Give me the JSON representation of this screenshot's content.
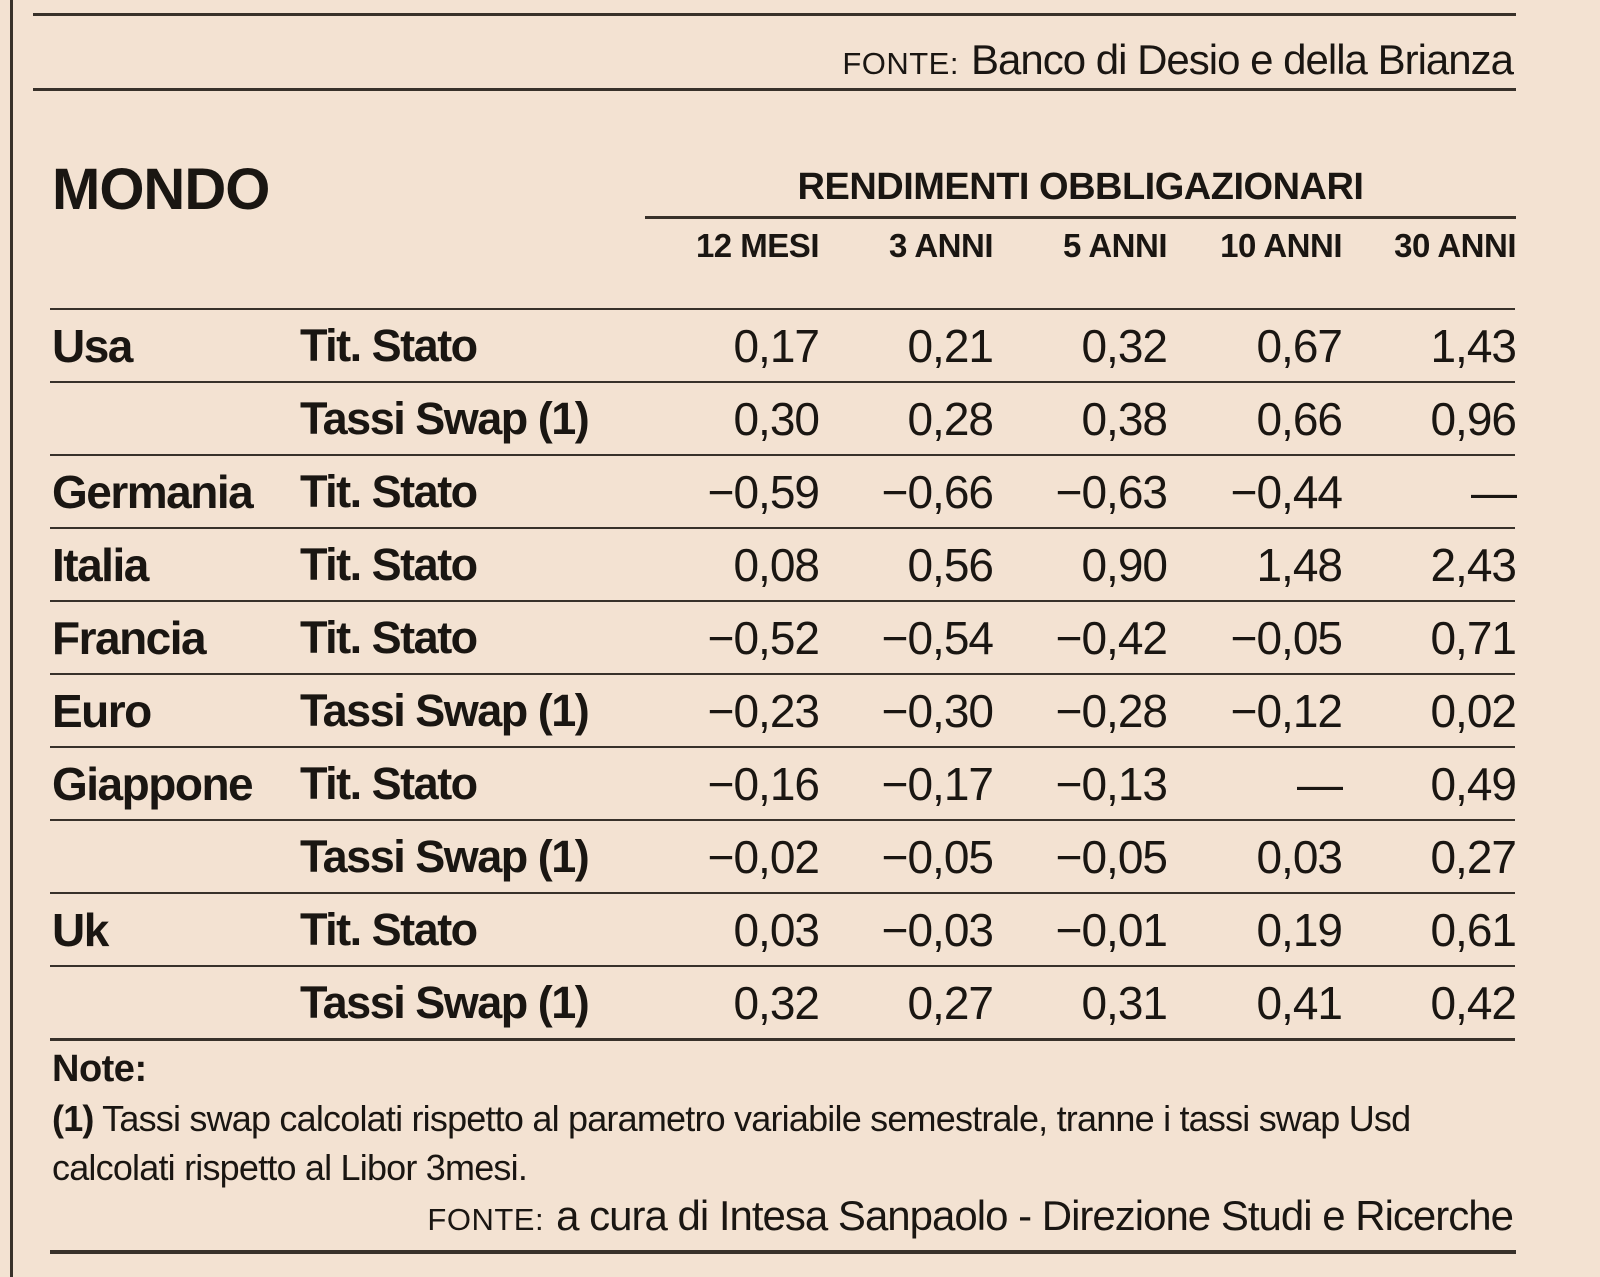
{
  "colors": {
    "background": "#f3e2d2",
    "ink": "#1a1612",
    "rule": "#38312a"
  },
  "top_source": {
    "label": "FONTE:",
    "text": "Banco di Desio e della Brianza"
  },
  "section": {
    "title": "MONDO",
    "table_title": "RENDIMENTI OBBLIGAZIONARI"
  },
  "table": {
    "column_headers": [
      "12 MESI",
      "3 ANNI",
      "5 ANNI",
      "10 ANNI",
      "30 ANNI"
    ],
    "rows": [
      {
        "country": "Usa",
        "instrument": "Tit. Stato",
        "values": [
          "0,17",
          "0,21",
          "0,32",
          "0,67",
          "1,43"
        ]
      },
      {
        "country": "",
        "instrument": "Tassi Swap (1)",
        "values": [
          "0,30",
          "0,28",
          "0,38",
          "0,66",
          "0,96"
        ]
      },
      {
        "country": "Germania",
        "instrument": "Tit. Stato",
        "values": [
          "−0,59",
          "−0,66",
          "−0,63",
          "−0,44",
          "—"
        ]
      },
      {
        "country": "Italia",
        "instrument": "Tit. Stato",
        "values": [
          "0,08",
          "0,56",
          "0,90",
          "1,48",
          "2,43"
        ]
      },
      {
        "country": "Francia",
        "instrument": "Tit. Stato",
        "values": [
          "−0,52",
          "−0,54",
          "−0,42",
          "−0,05",
          "0,71"
        ]
      },
      {
        "country": "Euro",
        "instrument": "Tassi Swap (1)",
        "values": [
          "−0,23",
          "−0,30",
          "−0,28",
          "−0,12",
          "0,02"
        ]
      },
      {
        "country": "Giappone",
        "instrument": "Tit. Stato",
        "values": [
          "−0,16",
          "−0,17",
          "−0,13",
          "—",
          "0,49"
        ]
      },
      {
        "country": "",
        "instrument": "Tassi Swap (1)",
        "values": [
          "−0,02",
          "−0,05",
          "−0,05",
          "0,03",
          "0,27"
        ]
      },
      {
        "country": "Uk",
        "instrument": "Tit. Stato",
        "values": [
          "0,03",
          "−0,03",
          "−0,01",
          "0,19",
          "0,61"
        ]
      },
      {
        "country": "",
        "instrument": "Tassi Swap (1)",
        "values": [
          "0,32",
          "0,27",
          "0,31",
          "0,41",
          "0,42"
        ]
      }
    ]
  },
  "notes": {
    "heading": "Note:",
    "ref": "(1)",
    "text": "Tassi swap calcolati rispetto al parametro variabile semestrale, tranne i tassi swap Usd calcolati rispetto al Libor 3mesi."
  },
  "bottom_source": {
    "label": "FONTE:",
    "text": "a cura di Intesa Sanpaolo - Direzione Studi e Ricerche"
  }
}
